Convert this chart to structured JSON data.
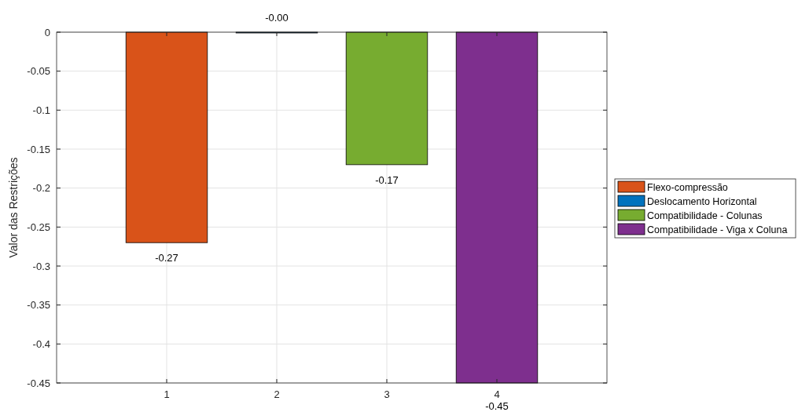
{
  "chart_data": {
    "type": "bar",
    "ylabel": "Valor das Restrições",
    "xlim": [
      0,
      5
    ],
    "xticks": [
      1,
      2,
      3,
      4
    ],
    "ylim": [
      -0.45,
      0
    ],
    "yticks": [
      -0.45,
      -0.4,
      -0.35,
      -0.3,
      -0.25,
      -0.2,
      -0.15,
      -0.1,
      -0.05,
      0
    ],
    "grid": true,
    "legend": "right",
    "series": [
      {
        "name": "Flexo-compressão",
        "color": "#d95319",
        "x": [
          1
        ],
        "values": [
          -0.27
        ],
        "value_labels": [
          "-0.27"
        ]
      },
      {
        "name": "Deslocamento Horizontal",
        "color": "#0072bd",
        "x": [
          2
        ],
        "values": [
          0
        ],
        "value_labels": [
          "-0.00"
        ]
      },
      {
        "name": "Compatibilidade - Colunas",
        "color": "#77ac30",
        "x": [
          3
        ],
        "values": [
          -0.17
        ],
        "value_labels": [
          "-0.17"
        ]
      },
      {
        "name": "Compatibilidade - Viga x Coluna",
        "color": "#7e2f8e",
        "x": [
          4
        ],
        "values": [
          -0.45
        ],
        "value_labels": [
          "-0.45"
        ]
      }
    ]
  }
}
